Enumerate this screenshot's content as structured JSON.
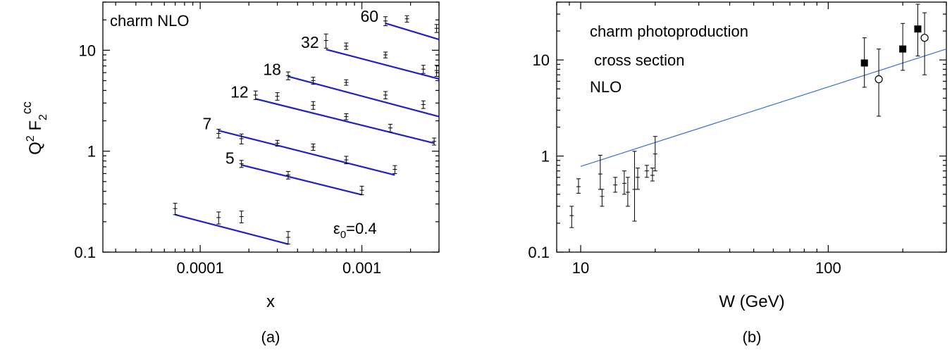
{
  "chart_data": [
    {
      "id": "panel-a",
      "type": "scatter",
      "panel_label": "(a)",
      "title": "",
      "xlabel": "x",
      "ylabel": "Q^2 F_2^cc",
      "xscale": "log",
      "yscale": "log",
      "xlim": [
        2.5e-05,
        0.003
      ],
      "ylim": [
        0.1,
        30
      ],
      "xticks": [
        {
          "v": 0.0001,
          "label": "0.0001"
        },
        {
          "v": 0.001,
          "label": "0.001"
        }
      ],
      "yticks": [
        {
          "v": 0.1,
          "label": "0.1"
        },
        {
          "v": 1,
          "label": "1"
        },
        {
          "v": 10,
          "label": "10"
        }
      ],
      "annotations": [
        {
          "text": "charm NLO",
          "position": "top-left"
        },
        {
          "text": "ε0=0.4",
          "position": "bottom-right"
        }
      ],
      "series": [
        {
          "q2_label": "",
          "points": [
            {
              "x": 7e-05,
              "y": 0.27,
              "err": 0.035
            },
            {
              "x": 0.00013,
              "y": 0.22,
              "err": 0.03
            },
            {
              "x": 0.00018,
              "y": 0.225,
              "err": 0.03
            },
            {
              "x": 0.00035,
              "y": 0.14,
              "err": 0.02
            }
          ],
          "fit": [
            {
              "x": 7e-05,
              "y": 0.235
            },
            {
              "x": 0.00035,
              "y": 0.12
            }
          ]
        },
        {
          "q2_label": "5",
          "points": [
            {
              "x": 0.00018,
              "y": 0.75,
              "err": 0.06
            },
            {
              "x": 0.00035,
              "y": 0.58,
              "err": 0.05
            },
            {
              "x": 0.001,
              "y": 0.41,
              "err": 0.04
            }
          ],
          "fit": [
            {
              "x": 0.00018,
              "y": 0.73
            },
            {
              "x": 0.001,
              "y": 0.37
            }
          ]
        },
        {
          "q2_label": "7",
          "points": [
            {
              "x": 0.00013,
              "y": 1.5,
              "err": 0.15
            },
            {
              "x": 0.00018,
              "y": 1.33,
              "err": 0.15
            },
            {
              "x": 0.0003,
              "y": 1.2,
              "err": 0.08
            },
            {
              "x": 0.0005,
              "y": 1.1,
              "err": 0.08
            },
            {
              "x": 0.0008,
              "y": 0.82,
              "err": 0.07
            },
            {
              "x": 0.0016,
              "y": 0.66,
              "err": 0.06
            }
          ],
          "fit": [
            {
              "x": 0.00013,
              "y": 1.6
            },
            {
              "x": 0.0016,
              "y": 0.58
            }
          ]
        },
        {
          "q2_label": "12",
          "points": [
            {
              "x": 0.00022,
              "y": 3.6,
              "err": 0.35
            },
            {
              "x": 0.0003,
              "y": 3.5,
              "err": 0.3
            },
            {
              "x": 0.0005,
              "y": 2.85,
              "err": 0.25
            },
            {
              "x": 0.0008,
              "y": 2.2,
              "err": 0.15
            },
            {
              "x": 0.0015,
              "y": 1.7,
              "err": 0.15
            },
            {
              "x": 0.0028,
              "y": 1.25,
              "err": 0.1
            }
          ],
          "fit": [
            {
              "x": 0.00022,
              "y": 3.3
            },
            {
              "x": 0.0028,
              "y": 1.2
            }
          ]
        },
        {
          "q2_label": "18",
          "points": [
            {
              "x": 0.00035,
              "y": 5.6,
              "err": 0.5
            },
            {
              "x": 0.0005,
              "y": 5.0,
              "err": 0.4
            },
            {
              "x": 0.0008,
              "y": 4.8,
              "err": 0.3
            },
            {
              "x": 0.0014,
              "y": 3.6,
              "err": 0.3
            },
            {
              "x": 0.0024,
              "y": 2.9,
              "err": 0.25
            }
          ],
          "fit": [
            {
              "x": 0.00035,
              "y": 5.5
            },
            {
              "x": 0.003,
              "y": 2.2
            }
          ]
        },
        {
          "q2_label": "32",
          "points": [
            {
              "x": 0.0006,
              "y": 12.5,
              "err": 2.0
            },
            {
              "x": 0.0008,
              "y": 11.0,
              "err": 0.8
            },
            {
              "x": 0.0014,
              "y": 9.0,
              "err": 0.6
            },
            {
              "x": 0.0024,
              "y": 6.5,
              "err": 0.6
            },
            {
              "x": 0.0029,
              "y": 6.3,
              "err": 0.8
            }
          ],
          "fit": [
            {
              "x": 0.0006,
              "y": 10.2
            },
            {
              "x": 0.003,
              "y": 5.2
            }
          ]
        },
        {
          "q2_label": "60",
          "points": [
            {
              "x": 0.0014,
              "y": 19.5,
              "err": 2.0
            },
            {
              "x": 0.0019,
              "y": 20.5,
              "err": 1.5
            },
            {
              "x": 0.0029,
              "y": 16.5,
              "err": 1.5
            }
          ],
          "fit": [
            {
              "x": 0.0014,
              "y": 18.5
            },
            {
              "x": 0.003,
              "y": 12.8
            }
          ]
        }
      ]
    },
    {
      "id": "panel-b",
      "type": "scatter",
      "panel_label": "(b)",
      "title": "",
      "xlabel": "W (GeV)",
      "ylabel": "",
      "xscale": "log",
      "yscale": "log",
      "xlim": [
        8,
        300
      ],
      "ylim": [
        0.1,
        40
      ],
      "xticks": [
        {
          "v": 10,
          "label": "10"
        },
        {
          "v": 100,
          "label": "100"
        }
      ],
      "yticks": [
        {
          "v": 0.1,
          "label": "0.1"
        },
        {
          "v": 1,
          "label": "1"
        },
        {
          "v": 10,
          "label": "10"
        }
      ],
      "annotations": [
        {
          "text": "charm photoproduction"
        },
        {
          "text": " cross section"
        },
        {
          "text": "NLO"
        }
      ],
      "fit": [
        {
          "x": 10,
          "y": 0.78
        },
        {
          "x": 300,
          "y": 13.0
        }
      ],
      "low_energy_points": [
        {
          "x": 9.2,
          "y": 0.24,
          "lo": 0.18,
          "hi": 0.3
        },
        {
          "x": 9.8,
          "y": 0.48,
          "lo": 0.41,
          "hi": 0.58
        },
        {
          "x": 12.0,
          "y": 0.65,
          "lo": 0.45,
          "hi": 1.02
        },
        {
          "x": 12.2,
          "y": 0.38,
          "lo": 0.3,
          "hi": 0.45
        },
        {
          "x": 13.8,
          "y": 0.5,
          "lo": 0.42,
          "hi": 0.6
        },
        {
          "x": 15.0,
          "y": 0.52,
          "lo": 0.4,
          "hi": 0.7
        },
        {
          "x": 15.5,
          "y": 0.42,
          "lo": 0.3,
          "hi": 0.6
        },
        {
          "x": 16.5,
          "y": 0.45,
          "lo": 0.21,
          "hi": 1.12
        },
        {
          "x": 17.0,
          "y": 0.6,
          "lo": 0.45,
          "hi": 0.75
        },
        {
          "x": 18.5,
          "y": 0.7,
          "lo": 0.6,
          "hi": 0.8
        },
        {
          "x": 19.5,
          "y": 0.63,
          "lo": 0.55,
          "hi": 0.75
        },
        {
          "x": 20.0,
          "y": 1.05,
          "lo": 0.7,
          "hi": 1.6
        }
      ],
      "filled_square_points": [
        {
          "x": 140,
          "y": 9.3,
          "lo": 5.2,
          "hi": 17.0
        },
        {
          "x": 200,
          "y": 13.0,
          "lo": 7.8,
          "hi": 24.0
        },
        {
          "x": 230,
          "y": 21.0,
          "lo": 11.0,
          "hi": 38.0
        }
      ],
      "open_circle_points": [
        {
          "x": 160,
          "y": 6.3,
          "lo": 2.6,
          "hi": 13.0
        },
        {
          "x": 245,
          "y": 17.0,
          "lo": 7.0,
          "hi": 31.0
        }
      ]
    }
  ],
  "colors": {
    "fit_a": "#1f20c8",
    "fit_b": "#3b6fd6",
    "marker": "#000000"
  }
}
